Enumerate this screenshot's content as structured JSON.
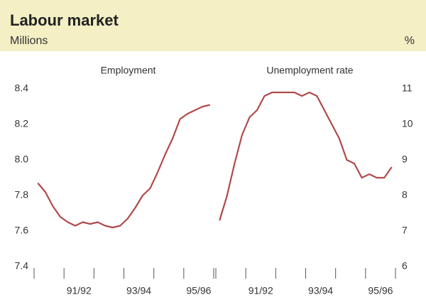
{
  "header": {
    "title": "Labour market",
    "left_unit": "Millions",
    "right_unit": "%"
  },
  "chart_data": [
    {
      "type": "line",
      "title": "Employment",
      "y_axis_side": "left",
      "color": "#b04a4c",
      "grid": false,
      "categories": [
        null,
        null,
        null,
        null,
        null,
        "91/92",
        null,
        null,
        null,
        null,
        null,
        null,
        null,
        "93/94",
        null,
        null,
        null,
        null,
        null,
        null,
        null,
        "95/96",
        null,
        null
      ],
      "values": [
        7.87,
        7.82,
        7.74,
        7.68,
        7.65,
        7.63,
        7.65,
        7.64,
        7.65,
        7.63,
        7.62,
        7.63,
        7.67,
        7.73,
        7.8,
        7.84,
        7.93,
        8.03,
        8.12,
        8.23,
        8.26,
        8.28,
        8.3,
        8.31
      ],
      "ylim": [
        7.4,
        8.4
      ],
      "yticks": [
        7.4,
        7.6,
        7.8,
        {
          "value": 8,
          "label": "8.0"
        },
        8.2,
        8.4
      ]
    },
    {
      "type": "line",
      "title": "Unemployment rate",
      "y_axis_side": "right",
      "color": "#b04a4c",
      "grid": false,
      "categories": [
        null,
        null,
        null,
        null,
        null,
        "91/92",
        null,
        null,
        null,
        null,
        null,
        null,
        null,
        "93/94",
        null,
        null,
        null,
        null,
        null,
        null,
        null,
        "95/96",
        null,
        null
      ],
      "values": [
        7.3,
        8.0,
        8.9,
        9.7,
        10.2,
        10.4,
        10.8,
        10.9,
        10.9,
        10.9,
        10.9,
        10.8,
        10.9,
        10.8,
        10.4,
        10.0,
        9.6,
        9.0,
        8.9,
        8.5,
        8.6,
        8.5,
        8.5,
        8.8
      ],
      "ylim": [
        6,
        11
      ],
      "yticks": [
        6,
        7,
        8,
        9,
        10,
        11
      ]
    }
  ]
}
